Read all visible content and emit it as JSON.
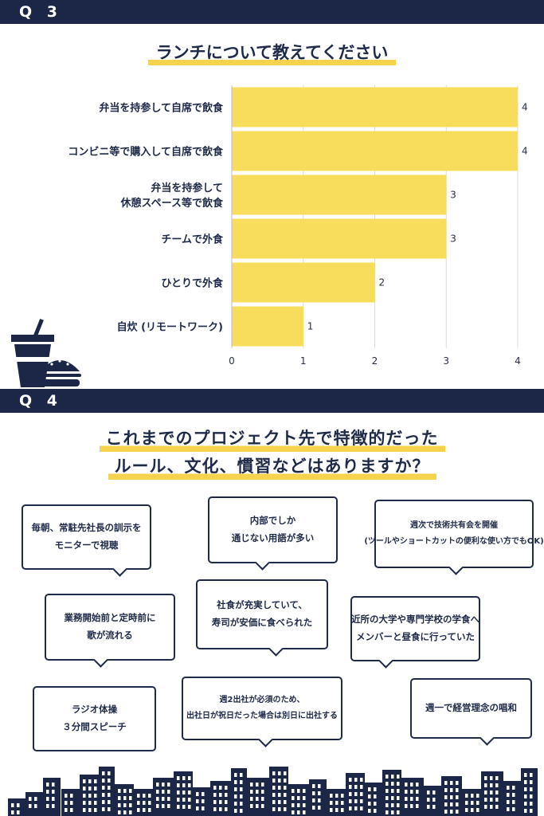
{
  "q3": {
    "label": "Q 3",
    "title": "ランチについて教えてください"
  },
  "chart_data": {
    "type": "bar",
    "orientation": "horizontal",
    "categories": [
      "弁当を持参して自席で飲食",
      "コンビニ等で購入して自席で飲食",
      "弁当を持参して\n休憩スペース等で飲食",
      "チームで外食",
      "ひとりで外食",
      "自炊 (リモートワーク)"
    ],
    "values": [
      4,
      4,
      3,
      3,
      2,
      1
    ],
    "data_labels": [
      "4",
      "4",
      "3",
      "3",
      "2",
      "1"
    ],
    "xlim": [
      0,
      4
    ],
    "xticks": [
      "0",
      "1",
      "2",
      "3",
      "4"
    ],
    "grid": true,
    "bar_color": "#f8dc5b",
    "title": "ランチについて教えてください"
  },
  "q4": {
    "label": "Q 4",
    "title_line1": "これまでのプロジェクト先で特徴的だった",
    "title_line2": "ルール、文化、慣習などはありますか？",
    "bubbles": [
      {
        "lines": [
          "毎朝、常駐先社長の訓示を",
          "モニターで視聴"
        ]
      },
      {
        "lines": [
          "内部でしか",
          "通じない用語が多い"
        ]
      },
      {
        "lines": [
          "週次で技術共有会を開催",
          "(ツールやショートカットの便利な使い方でもOK)"
        ]
      },
      {
        "lines": [
          "業務開始前と定時前に",
          "歌が流れる"
        ]
      },
      {
        "lines": [
          "社食が充実していて、",
          "寿司が安価に食べられた"
        ]
      },
      {
        "lines": [
          "近所の大学や専門学校の学食へ",
          "メンバーと昼食に行っていた"
        ]
      },
      {
        "lines": [
          "ラジオ体操",
          "３分間スピーチ"
        ]
      },
      {
        "lines": [
          "週2出社が必須のため、",
          "出社日が祝日だった場合は別日に出社する"
        ]
      },
      {
        "lines": [
          "週一で経営理念の唱和"
        ]
      }
    ]
  },
  "colors": {
    "navy": "#1c2748",
    "accent_yellow": "#f6d34c",
    "text": "#1f2a48"
  },
  "icons": [
    "drink-cup-icon",
    "burger-icon",
    "city-skyline-icon"
  ]
}
